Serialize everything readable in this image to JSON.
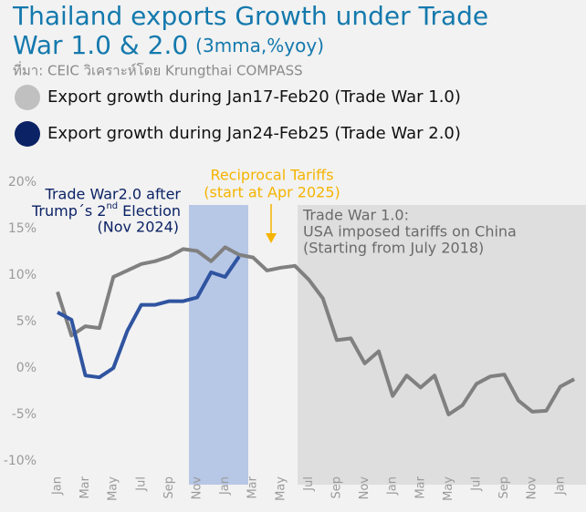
{
  "title_lines": [
    "Thailand exports Growth under Trade",
    "War 1.0 & 2.0"
  ],
  "subtitle": "(3mma,%yoy)",
  "source": "ที่มา: CEIC วิเคราะห์โดย Krungthai COMPASS",
  "chart_data": {
    "type": "line",
    "categories": [
      "Jan",
      null,
      "Mar",
      null,
      "May",
      null,
      "Jul",
      null,
      "Sep",
      null,
      "Nov",
      null,
      "Jan",
      null,
      "Mar",
      null,
      "May",
      null,
      "Jul",
      null,
      "Sep",
      null,
      "Nov",
      null,
      "Jan",
      null,
      "Mar",
      null,
      "May",
      null,
      "Jul",
      null,
      "Sep",
      null,
      "Nov",
      null,
      "Jan",
      null
    ],
    "series": [
      {
        "name": "Export growth during Jan17-Feb20 (Trade War 1.0)",
        "color": "#808080",
        "legend_color": "#c0c0c0",
        "values": [
          8.2,
          3.5,
          4.5,
          4.3,
          9.8,
          10.5,
          11.2,
          11.5,
          12,
          12.8,
          12.6,
          11.5,
          13,
          12.2,
          11.9,
          10.5,
          10.8,
          11,
          9.5,
          7.5,
          3,
          3.2,
          0.5,
          1.8,
          -3,
          -0.8,
          -2.1,
          -0.8,
          -5,
          -4,
          -1.7,
          -0.9,
          -0.7,
          -3.5,
          -4.7,
          -4.6,
          -2,
          -1.2
        ]
      },
      {
        "name": "Export growth during Jan24-Feb25 (Trade War 2.0)",
        "color": "#2f54a0",
        "legend_color": "#0b2265",
        "values": [
          6,
          5.2,
          -0.8,
          -1.0,
          0,
          4,
          6.8,
          6.8,
          7.2,
          7.2,
          7.6,
          10.3,
          9.8,
          12,
          null,
          null,
          null,
          null,
          null,
          null,
          null,
          null,
          null,
          null,
          null,
          null,
          null,
          null,
          null,
          null,
          null,
          null,
          null,
          null,
          null,
          null,
          null,
          null
        ]
      }
    ],
    "ylim": [
      -10,
      20
    ],
    "yticks": [
      {
        "value": -10,
        "label": "-10%"
      },
      {
        "value": -5,
        "label": "-5%"
      },
      {
        "value": 0,
        "label": "0%"
      },
      {
        "value": 5,
        "label": "5%"
      },
      {
        "value": 10,
        "label": "10%"
      },
      {
        "value": 15,
        "label": "15%"
      },
      {
        "value": 20,
        "label": "20%"
      }
    ],
    "grid": false,
    "annotations": {
      "tw2": {
        "line1": "Trade War2.0 after",
        "line2": "Trump´s 2",
        "line2_sup": "nd",
        "line2_end": "Election",
        "line3": "(Nov 2024)"
      },
      "reciprocal": {
        "line1": "Reciprocal Tariffs",
        "line2": "(start at Apr 2025)"
      },
      "tw1": {
        "line1": "Trade War 1.0:",
        "line2": "USA imposed tariffs on China",
        "line3": "(Starting from July 2018)"
      }
    }
  }
}
